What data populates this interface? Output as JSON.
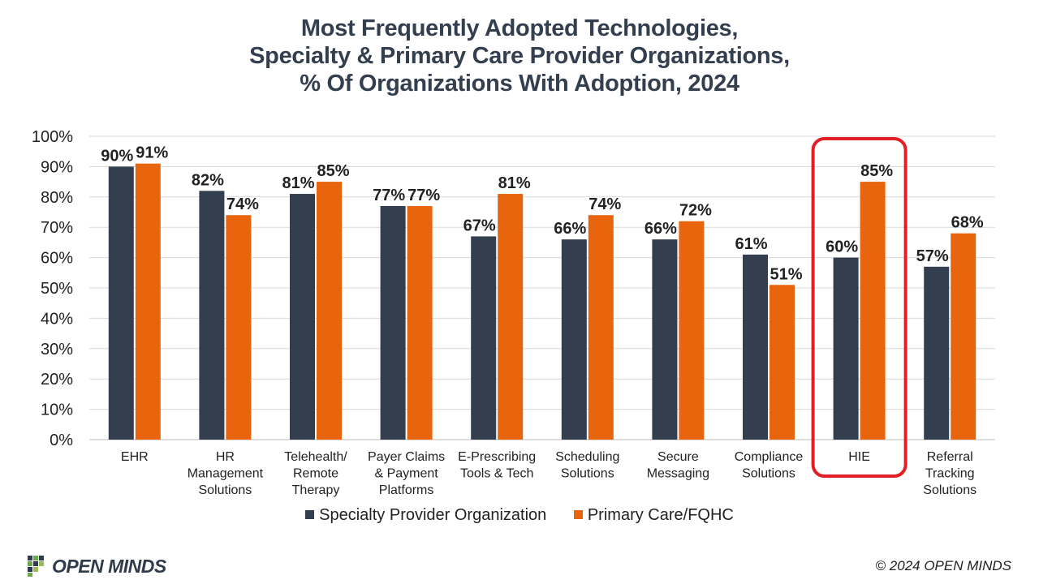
{
  "title_lines": [
    "Most Frequently Adopted Technologies,",
    "Specialty & Primary Care Provider Organizations,",
    "% Of Organizations With Adoption, 2024"
  ],
  "chart_data": {
    "type": "bar",
    "title": "Most Frequently Adopted Technologies, Specialty & Primary Care Provider Organizations, % Of Organizations With Adoption, 2024",
    "categories": [
      [
        "EHR"
      ],
      [
        "HR",
        "Management",
        "Solutions"
      ],
      [
        "Telehealth/",
        "Remote",
        "Therapy"
      ],
      [
        "Payer Claims",
        "& Payment",
        "Platforms"
      ],
      [
        "E-Prescribing",
        "Tools & Tech"
      ],
      [
        "Scheduling",
        "Solutions"
      ],
      [
        "Secure",
        "Messaging"
      ],
      [
        "Compliance",
        "Solutions"
      ],
      [
        "HIE"
      ],
      [
        "Referral",
        "Tracking",
        "Solutions"
      ]
    ],
    "series": [
      {
        "name": "Specialty Provider Organization",
        "color": "#333f4f",
        "values": [
          90,
          82,
          81,
          77,
          67,
          66,
          66,
          61,
          60,
          57
        ],
        "labels": [
          "90%",
          "82%",
          "81%",
          "77%",
          "67%",
          "66%",
          "66%",
          "61%",
          "60%",
          "57%"
        ]
      },
      {
        "name": "Primary Care/FQHC",
        "color": "#e8650e",
        "values": [
          91,
          74,
          85,
          77,
          81,
          74,
          72,
          51,
          85,
          68
        ],
        "labels": [
          "91%",
          "74%",
          "85%",
          "77%",
          "81%",
          "74%",
          "72%",
          "51%",
          "85%",
          "68%"
        ]
      }
    ],
    "y_ticks": [
      "0%",
      "10%",
      "20%",
      "30%",
      "40%",
      "50%",
      "60%",
      "70%",
      "80%",
      "90%",
      "100%"
    ],
    "ylim": [
      0,
      100
    ],
    "grid": true,
    "legend": "bottom",
    "highlight": {
      "category": "HIE",
      "color": "#e31e24"
    }
  },
  "footer": {
    "brand": "OPEN MINDS",
    "copyright": "© 2024 OPEN MINDS"
  }
}
